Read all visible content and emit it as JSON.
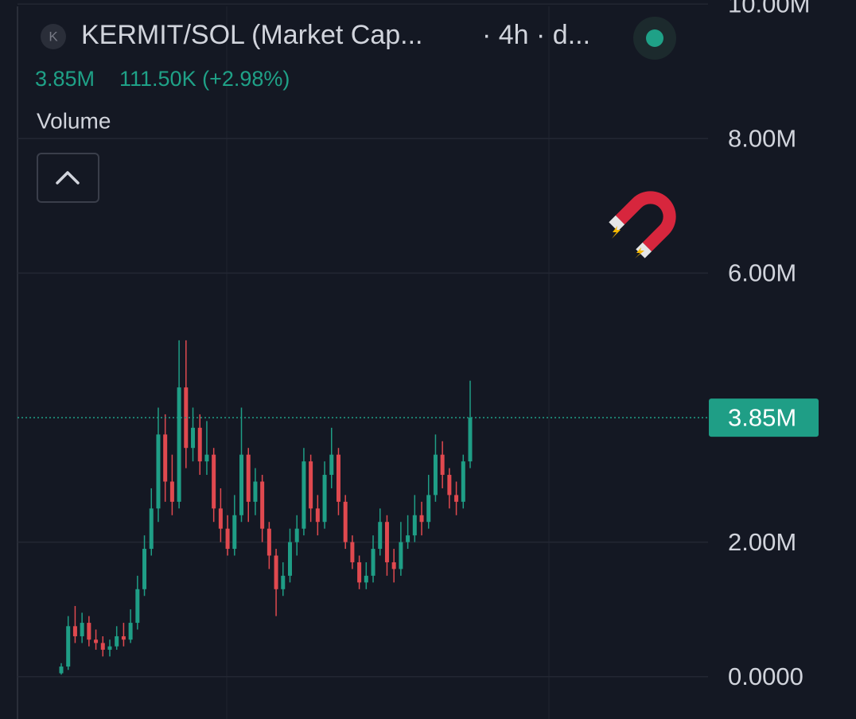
{
  "chart_data": {
    "type": "candlestick",
    "symbol_icon": "K",
    "title": "KERMIT/SOL (Market Cap...",
    "interval": "· 4h · d...",
    "change": "111.50K (+2.98%)",
    "indicator": "Volume",
    "last_price": {
      "value": 3850000,
      "label": "3.85M"
    },
    "up_color": "#1f9e86",
    "down_color": "#e0494f",
    "grid": true,
    "ylim": [
      -630000,
      10060000
    ],
    "yticks": [
      {
        "value": 0,
        "label": "0.0000"
      },
      {
        "value": 2000000,
        "label": "2.00M"
      },
      {
        "value": 6000000,
        "label": "6.00M"
      },
      {
        "value": 8000000,
        "label": "8.00M"
      },
      {
        "value": 10000000,
        "label": "10.00M"
      }
    ],
    "open": [
      50000,
      150000,
      750000,
      600000,
      800000,
      550000,
      500000,
      400000,
      450000,
      600000,
      550000,
      800000,
      1300000,
      1900000,
      2500000,
      3600000,
      2900000,
      2600000,
      4300000,
      3400000,
      3700000,
      3200000,
      3300000,
      2500000,
      2200000,
      1900000,
      2400000,
      3300000,
      2600000,
      2900000,
      2200000,
      1800000,
      1300000,
      1500000,
      2000000,
      2200000,
      3200000,
      2500000,
      2300000,
      3000000,
      3300000,
      2600000,
      2000000,
      1700000,
      1400000,
      1500000,
      1900000,
      2300000,
      1700000,
      1600000,
      2000000,
      2100000,
      2400000,
      2300000,
      2700000,
      3300000,
      3000000,
      2700000,
      2600000,
      3200000
    ],
    "high": [
      200000,
      900000,
      1050000,
      950000,
      900000,
      700000,
      600000,
      550000,
      750000,
      800000,
      1000000,
      1500000,
      2100000,
      2800000,
      4000000,
      3900000,
      3300000,
      5000000,
      5000000,
      4000000,
      3900000,
      3800000,
      3400000,
      2800000,
      2400000,
      2700000,
      4000000,
      3400000,
      3100000,
      3000000,
      2300000,
      1900000,
      1700000,
      2200000,
      2400000,
      3400000,
      3300000,
      2700000,
      3200000,
      3700000,
      3400000,
      2700000,
      2100000,
      1800000,
      1700000,
      2100000,
      2500000,
      2400000,
      1900000,
      2300000,
      2400000,
      2700000,
      2600000,
      3000000,
      3600000,
      3500000,
      3100000,
      2900000,
      3300000,
      4400000
    ],
    "low": [
      30000,
      100000,
      500000,
      500000,
      450000,
      400000,
      300000,
      300000,
      400000,
      450000,
      500000,
      700000,
      1200000,
      1800000,
      2300000,
      2600000,
      2400000,
      2500000,
      3100000,
      3200000,
      3000000,
      3000000,
      2300000,
      2000000,
      1800000,
      1800000,
      2300000,
      2300000,
      2400000,
      2000000,
      1600000,
      900000,
      1200000,
      1400000,
      1800000,
      2100000,
      2300000,
      2100000,
      2200000,
      2800000,
      2400000,
      1900000,
      1600000,
      1300000,
      1300000,
      1400000,
      1800000,
      1500000,
      1400000,
      1500000,
      1900000,
      2000000,
      2100000,
      2200000,
      2600000,
      2800000,
      2500000,
      2400000,
      2500000,
      3100000
    ],
    "close": [
      150000,
      750000,
      600000,
      800000,
      550000,
      500000,
      400000,
      450000,
      600000,
      550000,
      800000,
      1300000,
      1900000,
      2500000,
      3600000,
      2900000,
      2600000,
      4300000,
      3400000,
      3700000,
      3200000,
      3300000,
      2500000,
      2200000,
      1900000,
      2400000,
      3300000,
      2600000,
      2900000,
      2200000,
      1800000,
      1300000,
      1500000,
      2000000,
      2200000,
      3200000,
      2500000,
      2300000,
      3000000,
      3300000,
      2600000,
      2000000,
      1700000,
      1400000,
      1500000,
      1900000,
      2300000,
      1700000,
      1600000,
      2000000,
      2100000,
      2400000,
      2300000,
      2700000,
      3300000,
      3000000,
      2700000,
      2600000,
      3200000,
      3850000
    ]
  }
}
